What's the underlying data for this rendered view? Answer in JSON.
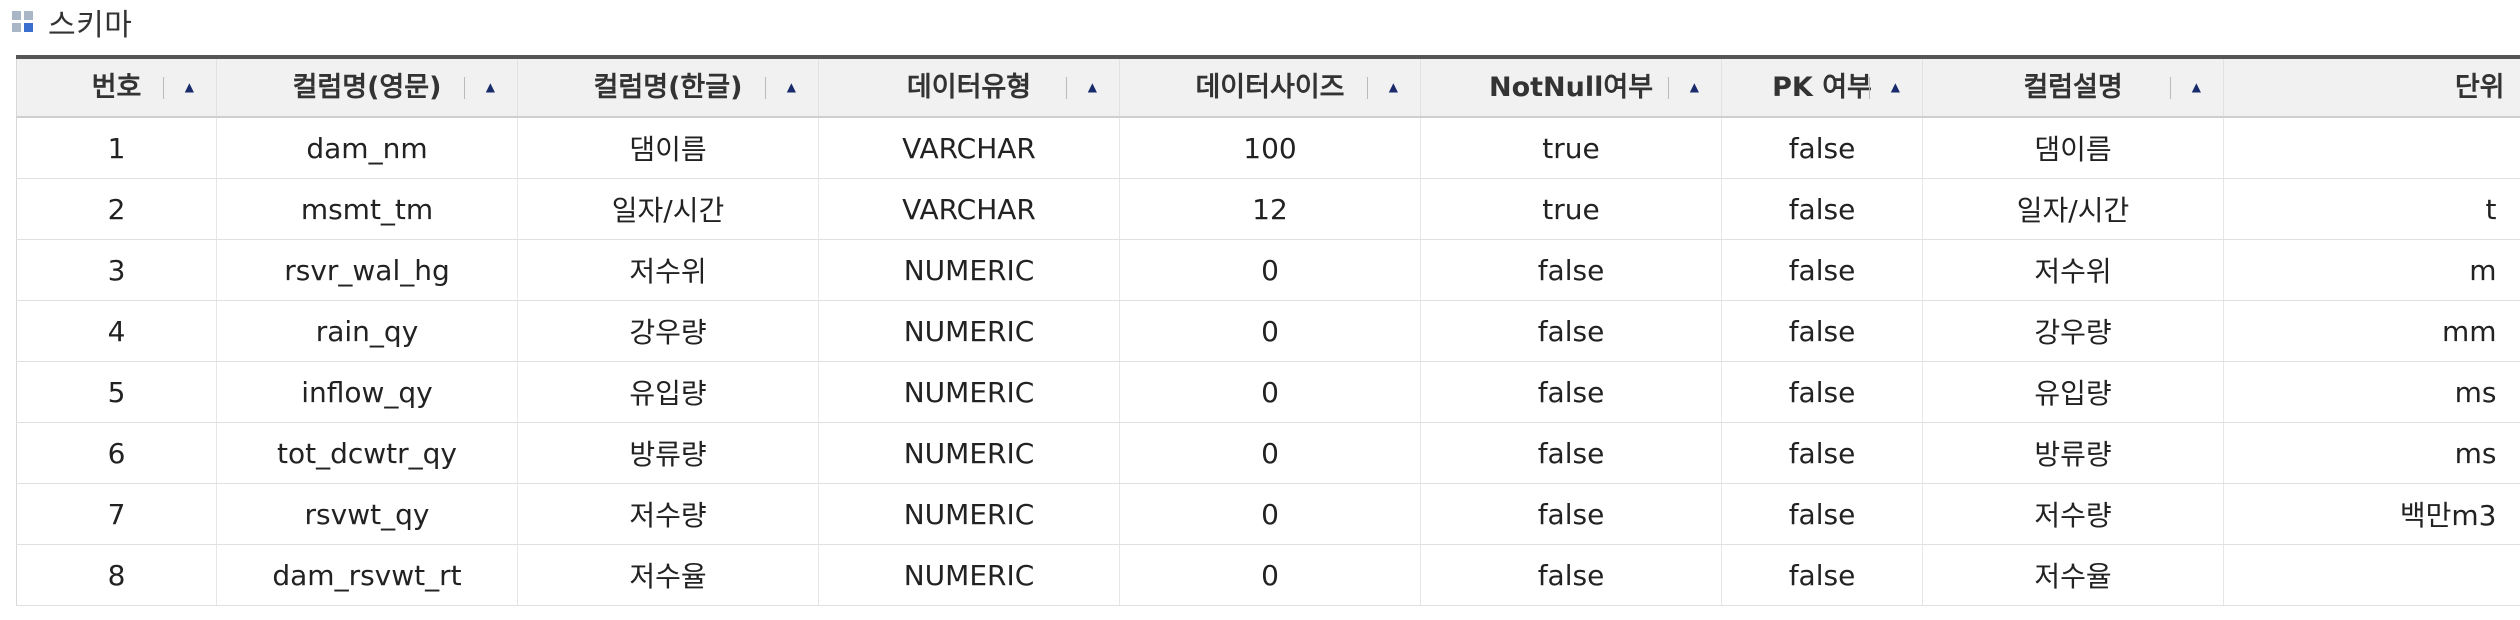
{
  "section": {
    "title": "스키마",
    "icon": "grid-squares-icon",
    "icon_colors": [
      "#a9b6c6",
      "#a9b6c6",
      "#a9b6c6",
      "#3a6fd0"
    ]
  },
  "table": {
    "columns": [
      {
        "key": "no",
        "label": "번호",
        "sortable": true
      },
      {
        "key": "name_en",
        "label": "컬럼명(영문)",
        "sortable": true
      },
      {
        "key": "name_ko",
        "label": "컬럼명(한글)",
        "sortable": true
      },
      {
        "key": "data_type",
        "label": "데이터유형",
        "sortable": true
      },
      {
        "key": "data_size",
        "label": "데이터사이즈",
        "sortable": true
      },
      {
        "key": "not_null",
        "label": "NotNull여부",
        "sortable": true
      },
      {
        "key": "pk",
        "label": "PK 여부",
        "sortable": true
      },
      {
        "key": "description",
        "label": "컬럼설명",
        "sortable": true
      },
      {
        "key": "unit",
        "label": "단위",
        "sortable": false
      }
    ],
    "sort_glyph": "▲",
    "rows": [
      {
        "no": "1",
        "name_en": "dam_nm",
        "name_ko": "댐이름",
        "data_type": "VARCHAR",
        "data_size": "100",
        "not_null": "true",
        "pk": "false",
        "description": "댐이름",
        "unit": ""
      },
      {
        "no": "2",
        "name_en": "msmt_tm",
        "name_ko": "일자/시간",
        "data_type": "VARCHAR",
        "data_size": "12",
        "not_null": "true",
        "pk": "false",
        "description": "일자/시간",
        "unit": "t"
      },
      {
        "no": "3",
        "name_en": "rsvr_wal_hg",
        "name_ko": "저수위",
        "data_type": "NUMERIC",
        "data_size": "0",
        "not_null": "false",
        "pk": "false",
        "description": "저수위",
        "unit": "m"
      },
      {
        "no": "4",
        "name_en": "rain_qy",
        "name_ko": "강우량",
        "data_type": "NUMERIC",
        "data_size": "0",
        "not_null": "false",
        "pk": "false",
        "description": "강우량",
        "unit": "mm"
      },
      {
        "no": "5",
        "name_en": "inflow_qy",
        "name_ko": "유입량",
        "data_type": "NUMERIC",
        "data_size": "0",
        "not_null": "false",
        "pk": "false",
        "description": "유입량",
        "unit": "ms"
      },
      {
        "no": "6",
        "name_en": "tot_dcwtr_qy",
        "name_ko": "방류량",
        "data_type": "NUMERIC",
        "data_size": "0",
        "not_null": "false",
        "pk": "false",
        "description": "방류량",
        "unit": "ms"
      },
      {
        "no": "7",
        "name_en": "rsvwt_qy",
        "name_ko": "저수량",
        "data_type": "NUMERIC",
        "data_size": "0",
        "not_null": "false",
        "pk": "false",
        "description": "저수량",
        "unit": "백만m3"
      },
      {
        "no": "8",
        "name_en": "dam_rsvwt_rt",
        "name_ko": "저수율",
        "data_type": "NUMERIC",
        "data_size": "0",
        "not_null": "false",
        "pk": "false",
        "description": "저수율",
        "unit": ""
      }
    ]
  }
}
